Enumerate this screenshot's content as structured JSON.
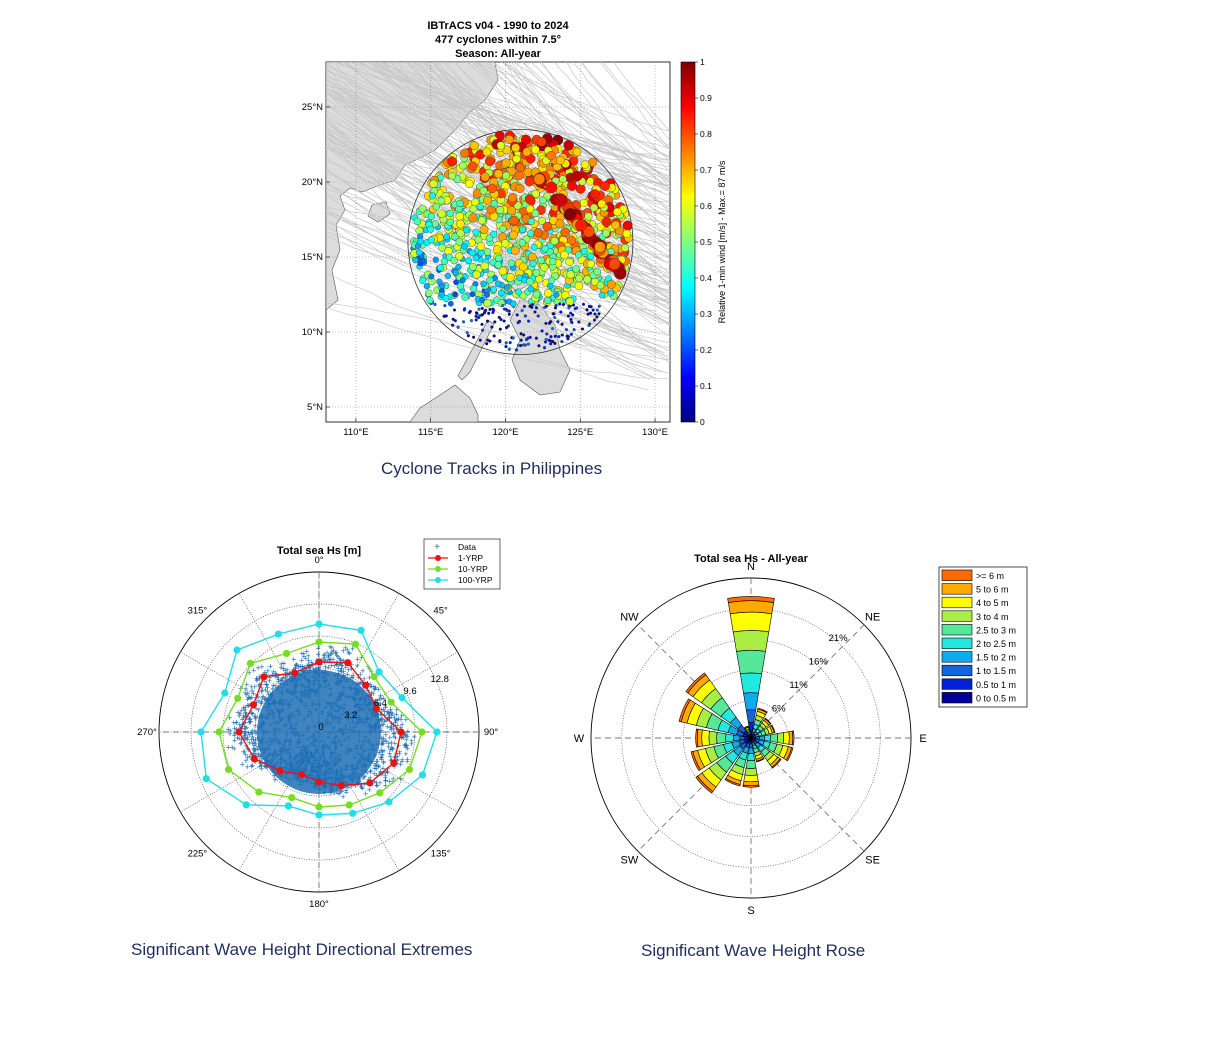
{
  "captions": {
    "map": "Cyclone Tracks in Philippines",
    "polar": "Significant Wave Height Directional Extremes",
    "rose": "Significant Wave Height Rose"
  },
  "chart_data": [
    {
      "type": "scatter",
      "chart": "cyclone_track_map",
      "title_lines": [
        "IBTrACS v04 - 1990 to 2024",
        "477 cyclones within 7.5°",
        "Season: All-year"
      ],
      "x_ticks": [
        "110°E",
        "115°E",
        "120°E",
        "125°E",
        "130°E"
      ],
      "x_tick_values": [
        110,
        115,
        120,
        125,
        130
      ],
      "y_ticks": [
        "25°N",
        "20°N",
        "15°N",
        "10°N",
        "5°N"
      ],
      "y_tick_values": [
        25,
        20,
        15,
        10,
        5
      ],
      "xlim": [
        108,
        131
      ],
      "ylim": [
        4,
        28
      ],
      "circle_center": [
        121,
        16
      ],
      "circle_radius_deg": 7.5,
      "colorbar": {
        "label": "Relative 1-min wind [m/s] - Max.= 87 m/s",
        "ticks": [
          "0",
          "0.1",
          "0.2",
          "0.3",
          "0.4",
          "0.5",
          "0.6",
          "0.7",
          "0.8",
          "0.9",
          "1"
        ],
        "range": [
          0,
          1
        ],
        "colormap": "jet"
      }
    },
    {
      "type": "scatter",
      "chart": "polar_extremes",
      "title": "Total sea Hs [m]",
      "angle_ticks": [
        "0°",
        "45°",
        "90°",
        "135°",
        "180°",
        "225°",
        "270°",
        "315°"
      ],
      "radial_ticks": [
        "0",
        "3.2",
        "6.4",
        "9.6",
        "12.8"
      ],
      "radial_tick_values": [
        0,
        3.2,
        6.4,
        9.6,
        12.8
      ],
      "rmax": 16,
      "directions_deg": [
        0,
        22.5,
        45,
        67.5,
        90,
        112.5,
        135,
        157.5,
        180,
        202.5,
        225,
        247.5,
        270,
        292.5,
        315,
        337.5
      ],
      "legend": {
        "placement": "top-right",
        "entries": [
          "Data",
          "1-YRP",
          "10-YRP",
          "100-YRP"
        ]
      },
      "series": [
        {
          "name": "1-YRP",
          "color": "#ee1111",
          "values": [
            7.0,
            7.5,
            6.6,
            6.2,
            8.2,
            8.1,
            7.2,
            5.8,
            5.0,
            4.6,
            5.5,
            7.0,
            8.0,
            7.1,
            7.8,
            6.4
          ]
        },
        {
          "name": "10-YRP",
          "color": "#77dd22",
          "values": [
            9.0,
            9.5,
            7.8,
            7.8,
            10.3,
            9.8,
            8.6,
            7.9,
            7.5,
            7.1,
            8.5,
            9.8,
            10.0,
            8.8,
            9.7,
            8.5
          ]
        },
        {
          "name": "100-YRP",
          "color": "#22dde8",
          "values": [
            10.8,
            11.0,
            8.5,
            9.0,
            11.8,
            11.2,
            9.9,
            8.8,
            8.3,
            8.0,
            10.3,
            12.2,
            11.8,
            10.2,
            11.6,
            10.6
          ]
        }
      ],
      "data_color": "#1f6fb5"
    },
    {
      "type": "bar",
      "chart": "wave_rose",
      "title": "Total sea Hs - All-year",
      "compass_labels": [
        "N",
        "NE",
        "E",
        "SE",
        "S",
        "SW",
        "W",
        "NW"
      ],
      "radial_ticks": [
        "6%",
        "11%",
        "16%",
        "21%"
      ],
      "radial_tick_values": [
        6,
        11,
        16,
        21
      ],
      "rmax": 26,
      "legend": {
        "placement": "top-right",
        "entries": [
          {
            "label": ">= 6 m",
            "color": "#ff6a00"
          },
          {
            "label": "5 to 6 m",
            "color": "#ffaa00"
          },
          {
            "label": "4 to 5 m",
            "color": "#ffff00"
          },
          {
            "label": "3 to 4 m",
            "color": "#aaee44"
          },
          {
            "label": "2.5 to 3 m",
            "color": "#55e899"
          },
          {
            "label": "2 to 2.5 m",
            "color": "#22e8e0"
          },
          {
            "label": "1.5 to 2 m",
            "color": "#11aaee"
          },
          {
            "label": "1 to 1.5 m",
            "color": "#1166dd"
          },
          {
            "label": "0.5 to 1 m",
            "color": "#0022dd"
          },
          {
            "label": "0 to 0.5 m",
            "color": "#000099"
          }
        ]
      },
      "sectors_deg": [
        0,
        22.5,
        45,
        67.5,
        90,
        112.5,
        135,
        157.5,
        180,
        202.5,
        225,
        247.5,
        270,
        292.5,
        315,
        337.5
      ],
      "cumulative_percent": [
        23,
        5,
        4,
        4,
        7,
        7,
        6,
        4,
        8,
        8,
        11,
        10,
        9,
        12,
        13,
        2
      ]
    }
  ]
}
